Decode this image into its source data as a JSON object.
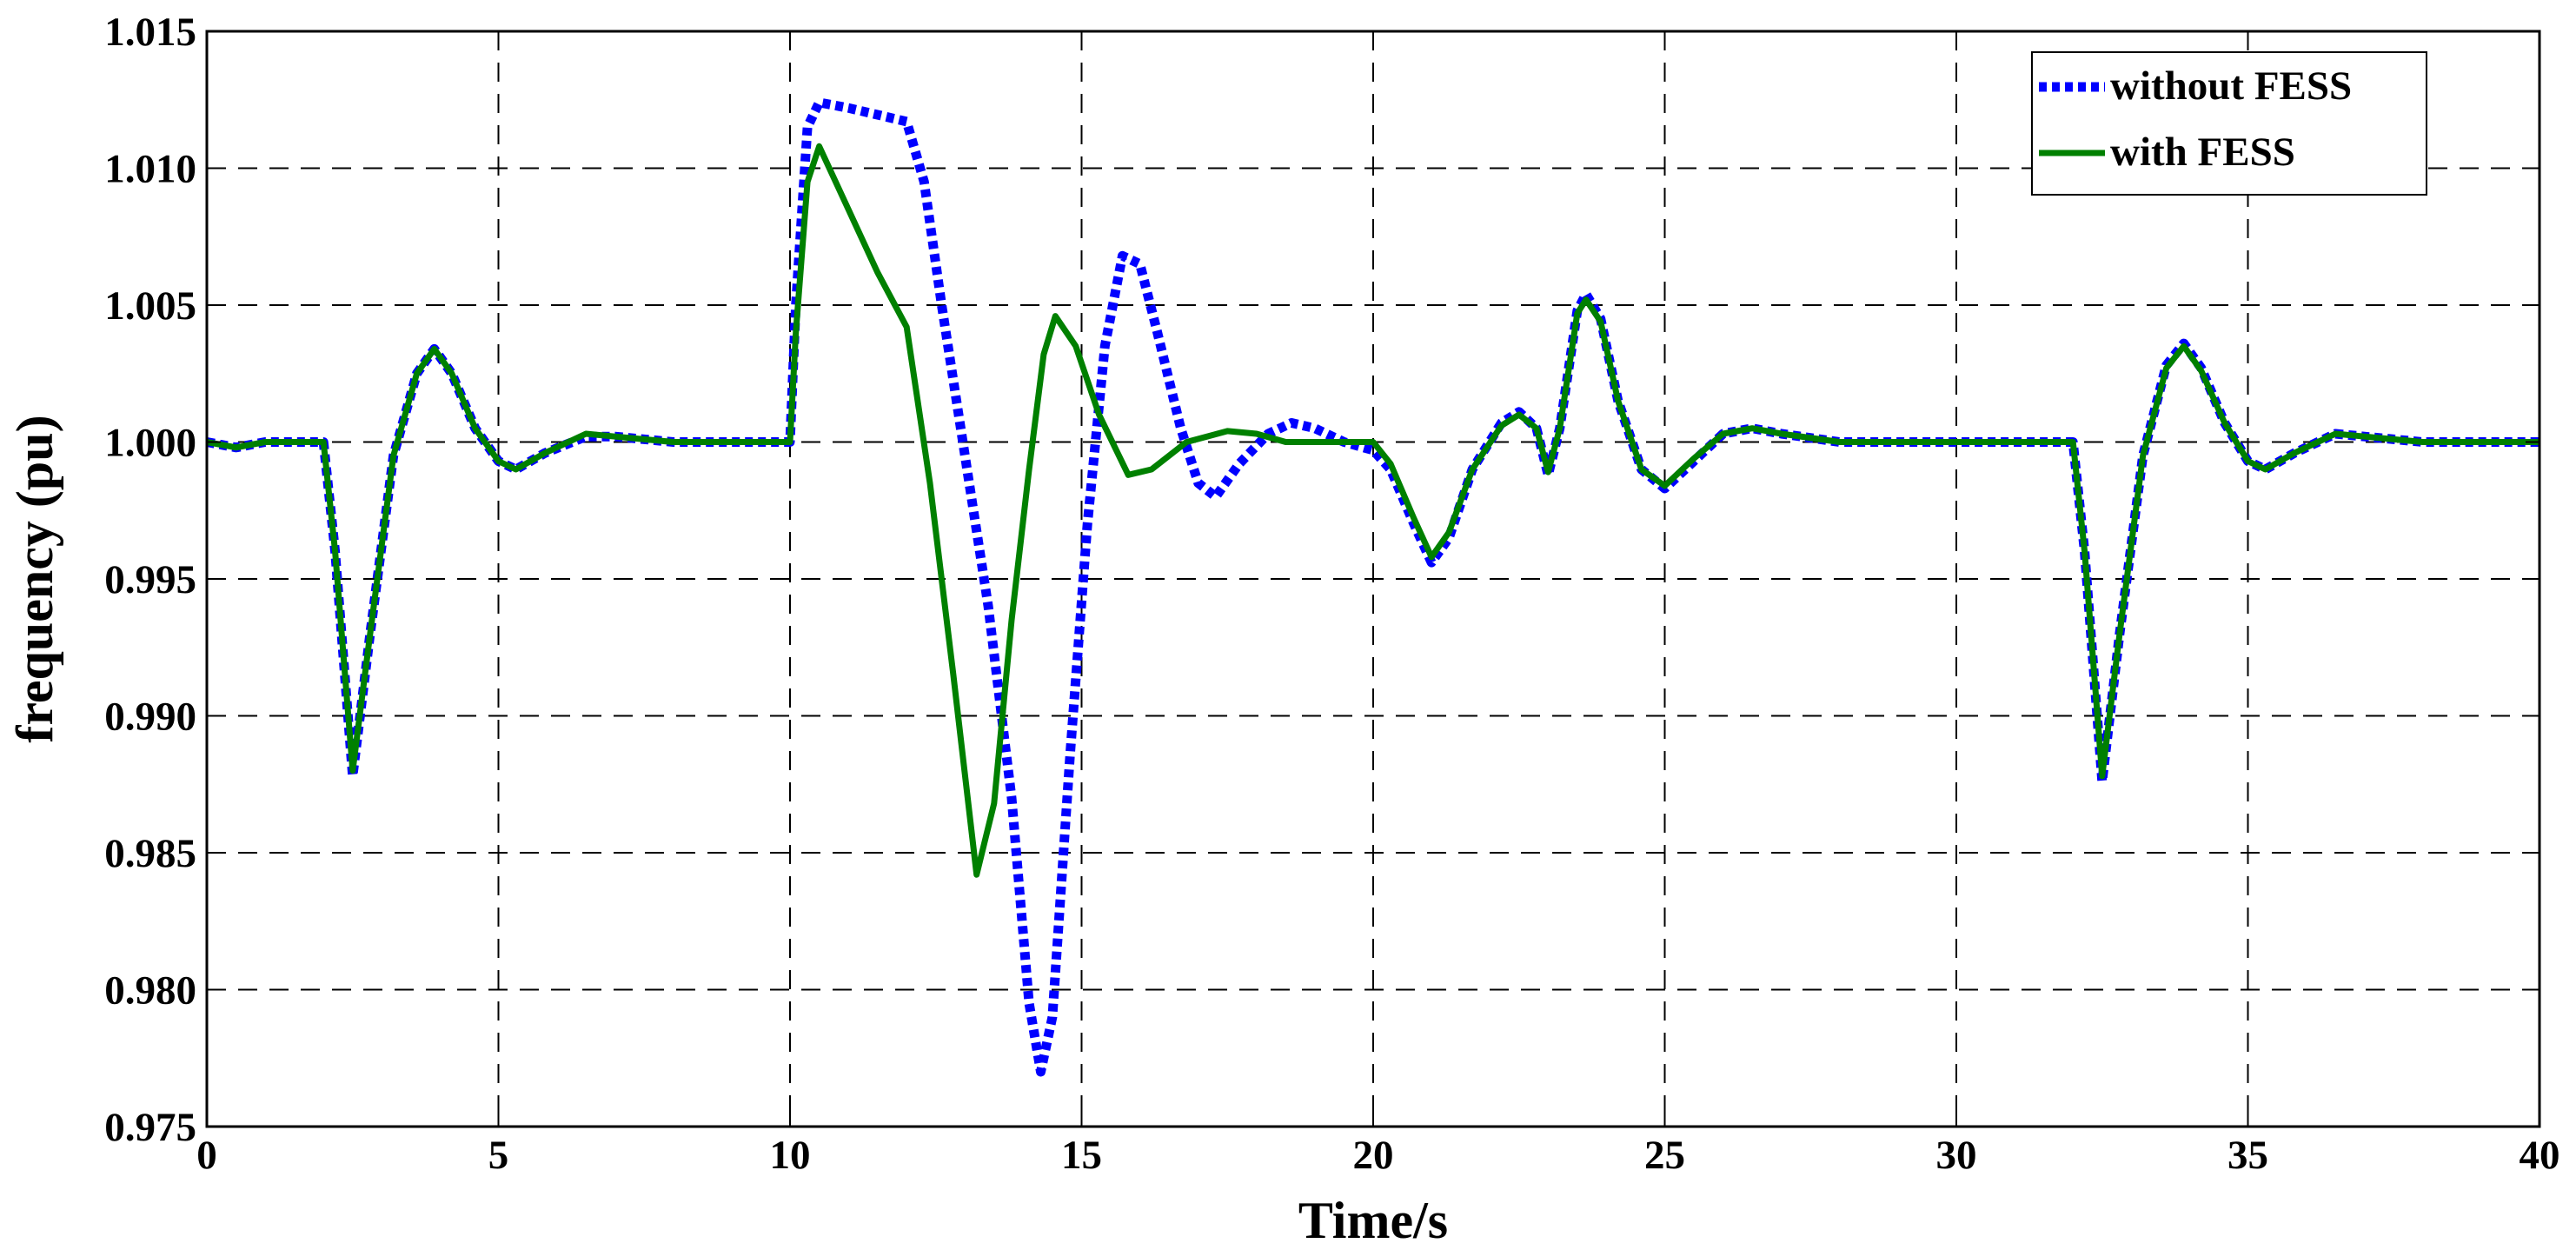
{
  "chart_data": {
    "type": "line",
    "title": "",
    "xlabel": "Time/s",
    "ylabel": "frequency (pu)",
    "xlim": [
      0,
      40
    ],
    "ylim": [
      0.975,
      1.015
    ],
    "xticks": [
      0,
      5,
      10,
      15,
      20,
      25,
      30,
      35,
      40
    ],
    "yticks": [
      0.975,
      0.98,
      0.985,
      0.99,
      0.995,
      1.0,
      1.005,
      1.01,
      1.015
    ],
    "xtick_labels": [
      "0",
      "5",
      "10",
      "15",
      "20",
      "25",
      "30",
      "35",
      "40"
    ],
    "ytick_labels": [
      "0.975",
      "0.980",
      "0.985",
      "0.990",
      "0.995",
      "1.000",
      "1.005",
      "1.010",
      "1.015"
    ],
    "grid": true,
    "legend_position": "top-right",
    "series": [
      {
        "name": "without FESS",
        "color": "#0000ff",
        "style": "dotted",
        "points": [
          [
            0,
            1.0
          ],
          [
            0.5,
            0.9998
          ],
          [
            1.0,
            1.0
          ],
          [
            1.5,
            1.0
          ],
          [
            2.0,
            1.0
          ],
          [
            2.2,
            0.996
          ],
          [
            2.5,
            0.9878
          ],
          [
            2.8,
            0.993
          ],
          [
            3.2,
            0.9995
          ],
          [
            3.6,
            1.0025
          ],
          [
            3.9,
            1.0034
          ],
          [
            4.2,
            1.0025
          ],
          [
            4.6,
            1.0005
          ],
          [
            5.0,
            0.9993
          ],
          [
            5.3,
            0.999
          ],
          [
            5.8,
            0.9996
          ],
          [
            6.5,
            1.0002
          ],
          [
            7.0,
            1.0002
          ],
          [
            8.0,
            1.0
          ],
          [
            9.0,
            1.0
          ],
          [
            10.0,
            1.0
          ],
          [
            10.1,
            1.005
          ],
          [
            10.3,
            1.0115
          ],
          [
            10.5,
            1.0124
          ],
          [
            11.0,
            1.0122
          ],
          [
            11.6,
            1.0119
          ],
          [
            12.0,
            1.0117
          ],
          [
            12.3,
            1.0095
          ],
          [
            12.6,
            1.005
          ],
          [
            13.0,
            0.9995
          ],
          [
            13.4,
            0.994
          ],
          [
            13.8,
            0.987
          ],
          [
            14.1,
            0.9795
          ],
          [
            14.3,
            0.977
          ],
          [
            14.5,
            0.979
          ],
          [
            14.8,
            0.9885
          ],
          [
            15.1,
            0.997
          ],
          [
            15.4,
            1.0035
          ],
          [
            15.7,
            1.0068
          ],
          [
            16.0,
            1.0065
          ],
          [
            16.3,
            1.004
          ],
          [
            16.7,
            1.0005
          ],
          [
            17.0,
            0.9985
          ],
          [
            17.3,
            0.998
          ],
          [
            17.7,
            0.9992
          ],
          [
            18.2,
            1.0003
          ],
          [
            18.6,
            1.0007
          ],
          [
            19.0,
            1.0005
          ],
          [
            19.5,
            1.0
          ],
          [
            20.0,
            0.9997
          ],
          [
            20.3,
            0.999
          ],
          [
            20.7,
            0.997
          ],
          [
            21.0,
            0.9956
          ],
          [
            21.3,
            0.9965
          ],
          [
            21.7,
            0.999
          ],
          [
            22.2,
            1.0007
          ],
          [
            22.5,
            1.0011
          ],
          [
            22.8,
            1.0005
          ],
          [
            23.0,
            0.9988
          ],
          [
            23.2,
            1.0005
          ],
          [
            23.5,
            1.0048
          ],
          [
            23.65,
            1.0054
          ],
          [
            23.9,
            1.0045
          ],
          [
            24.2,
            1.0015
          ],
          [
            24.6,
            0.999
          ],
          [
            25.0,
            0.9983
          ],
          [
            25.5,
            0.9993
          ],
          [
            26.0,
            1.0003
          ],
          [
            26.5,
            1.0005
          ],
          [
            27.0,
            1.0003
          ],
          [
            28.0,
            1.0
          ],
          [
            29.0,
            1.0
          ],
          [
            30.0,
            1.0
          ],
          [
            31.0,
            1.0
          ],
          [
            32.0,
            1.0
          ],
          [
            32.2,
            0.996
          ],
          [
            32.5,
            0.9876
          ],
          [
            32.8,
            0.993
          ],
          [
            33.2,
            0.9995
          ],
          [
            33.6,
            1.0028
          ],
          [
            33.9,
            1.0036
          ],
          [
            34.2,
            1.0027
          ],
          [
            34.6,
            1.0007
          ],
          [
            35.0,
            0.9993
          ],
          [
            35.3,
            0.999
          ],
          [
            35.8,
            0.9996
          ],
          [
            36.5,
            1.0003
          ],
          [
            37.0,
            1.0002
          ],
          [
            38.0,
            1.0
          ],
          [
            39.0,
            1.0
          ],
          [
            40.0,
            1.0
          ]
        ]
      },
      {
        "name": "with FESS",
        "color": "#008000",
        "style": "solid",
        "points": [
          [
            0,
            1.0
          ],
          [
            0.5,
            0.9998
          ],
          [
            1.0,
            1.0
          ],
          [
            1.5,
            1.0
          ],
          [
            2.0,
            1.0
          ],
          [
            2.2,
            0.996
          ],
          [
            2.5,
            0.988
          ],
          [
            2.8,
            0.993
          ],
          [
            3.2,
            0.9995
          ],
          [
            3.6,
            1.0025
          ],
          [
            3.9,
            1.0034
          ],
          [
            4.2,
            1.0025
          ],
          [
            4.6,
            1.0005
          ],
          [
            5.0,
            0.9993
          ],
          [
            5.3,
            0.999
          ],
          [
            5.8,
            0.9996
          ],
          [
            6.5,
            1.0003
          ],
          [
            7.0,
            1.0002
          ],
          [
            8.0,
            1.0
          ],
          [
            9.0,
            1.0
          ],
          [
            10.0,
            1.0
          ],
          [
            10.1,
            1.004
          ],
          [
            10.3,
            1.0095
          ],
          [
            10.5,
            1.0108
          ],
          [
            11.0,
            1.0085
          ],
          [
            11.5,
            1.0062
          ],
          [
            12.0,
            1.0042
          ],
          [
            12.4,
            0.9985
          ],
          [
            12.8,
            0.9915
          ],
          [
            13.2,
            0.9842
          ],
          [
            13.5,
            0.9868
          ],
          [
            13.8,
            0.9935
          ],
          [
            14.1,
            0.999
          ],
          [
            14.35,
            1.0032
          ],
          [
            14.55,
            1.0046
          ],
          [
            14.9,
            1.0035
          ],
          [
            15.3,
            1.001
          ],
          [
            15.8,
            0.9988
          ],
          [
            16.2,
            0.999
          ],
          [
            16.8,
            1.0
          ],
          [
            17.5,
            1.0004
          ],
          [
            18.0,
            1.0003
          ],
          [
            18.5,
            1.0
          ],
          [
            19.0,
            1.0
          ],
          [
            19.5,
            1.0
          ],
          [
            20.0,
            1.0
          ],
          [
            20.3,
            0.9992
          ],
          [
            20.7,
            0.9972
          ],
          [
            21.0,
            0.9958
          ],
          [
            21.3,
            0.9967
          ],
          [
            21.7,
            0.999
          ],
          [
            22.2,
            1.0006
          ],
          [
            22.5,
            1.001
          ],
          [
            22.8,
            1.0005
          ],
          [
            23.0,
            0.9989
          ],
          [
            23.2,
            1.0005
          ],
          [
            23.5,
            1.0047
          ],
          [
            23.65,
            1.0052
          ],
          [
            23.9,
            1.0044
          ],
          [
            24.2,
            1.0015
          ],
          [
            24.6,
            0.999
          ],
          [
            25.0,
            0.9984
          ],
          [
            25.5,
            0.9994
          ],
          [
            26.0,
            1.0003
          ],
          [
            26.5,
            1.0005
          ],
          [
            27.0,
            1.0003
          ],
          [
            28.0,
            1.0
          ],
          [
            29.0,
            1.0
          ],
          [
            30.0,
            1.0
          ],
          [
            31.0,
            1.0
          ],
          [
            32.0,
            1.0
          ],
          [
            32.2,
            0.996
          ],
          [
            32.5,
            0.9878
          ],
          [
            32.8,
            0.993
          ],
          [
            33.2,
            0.9995
          ],
          [
            33.6,
            1.0027
          ],
          [
            33.9,
            1.0035
          ],
          [
            34.2,
            1.0026
          ],
          [
            34.6,
            1.0007
          ],
          [
            35.0,
            0.9993
          ],
          [
            35.3,
            0.999
          ],
          [
            35.8,
            0.9996
          ],
          [
            36.5,
            1.0003
          ],
          [
            37.0,
            1.0002
          ],
          [
            38.0,
            1.0
          ],
          [
            39.0,
            1.0
          ],
          [
            40.0,
            1.0
          ]
        ]
      }
    ]
  }
}
